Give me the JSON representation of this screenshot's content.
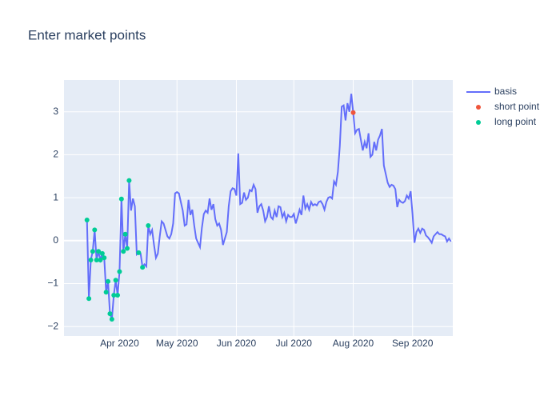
{
  "chart_data": {
    "type": "line",
    "title": "Enter market points",
    "xlim": [
      "2020-03-03",
      "2020-09-22"
    ],
    "xticks": [
      {
        "value": "2020-04-01",
        "label": "Apr 2020"
      },
      {
        "value": "2020-05-01",
        "label": "May 2020"
      },
      {
        "value": "2020-06-01",
        "label": "Jun 2020"
      },
      {
        "value": "2020-07-01",
        "label": "Jul 2020"
      },
      {
        "value": "2020-08-01",
        "label": "Aug 2020"
      },
      {
        "value": "2020-09-01",
        "label": "Sep 2020"
      }
    ],
    "ylim": [
      -2.22,
      3.74
    ],
    "yticks": [
      {
        "value": -2,
        "label": "−2"
      },
      {
        "value": -1,
        "label": "−1"
      },
      0,
      1,
      2,
      3
    ],
    "grid": true,
    "legend": "top-right-outside",
    "series": [
      {
        "name": "basis",
        "color": "#636efa",
        "mode": "lines",
        "x": [
          "2020-03-15",
          "2020-03-16",
          "2020-03-17",
          "2020-03-18",
          "2020-03-19",
          "2020-03-20",
          "2020-03-21",
          "2020-03-22",
          "2020-03-23",
          "2020-03-24",
          "2020-03-25",
          "2020-03-26",
          "2020-03-27",
          "2020-03-28",
          "2020-03-29",
          "2020-03-30",
          "2020-03-31",
          "2020-04-01",
          "2020-04-02",
          "2020-04-03",
          "2020-04-04",
          "2020-04-05",
          "2020-04-06",
          "2020-04-07",
          "2020-04-08",
          "2020-04-09",
          "2020-04-10",
          "2020-04-11",
          "2020-04-12",
          "2020-04-13",
          "2020-04-14",
          "2020-04-15",
          "2020-04-16",
          "2020-04-17",
          "2020-04-18",
          "2020-04-19",
          "2020-04-20",
          "2020-04-21",
          "2020-04-22",
          "2020-04-23",
          "2020-04-24",
          "2020-04-26",
          "2020-04-27",
          "2020-04-28",
          "2020-04-29",
          "2020-04-30",
          "2020-05-01",
          "2020-05-02",
          "2020-05-04",
          "2020-05-05",
          "2020-05-06",
          "2020-05-07",
          "2020-05-08",
          "2020-05-09",
          "2020-05-10",
          "2020-05-11",
          "2020-05-13",
          "2020-05-14",
          "2020-05-15",
          "2020-05-16",
          "2020-05-17",
          "2020-05-18",
          "2020-05-19",
          "2020-05-20",
          "2020-05-21",
          "2020-05-22",
          "2020-05-23",
          "2020-05-24",
          "2020-05-25",
          "2020-05-26",
          "2020-05-27",
          "2020-05-28",
          "2020-05-29",
          "2020-05-30",
          "2020-05-31",
          "2020-06-01",
          "2020-06-02",
          "2020-06-03",
          "2020-06-04",
          "2020-06-05",
          "2020-06-06",
          "2020-06-07",
          "2020-06-08",
          "2020-06-09",
          "2020-06-10",
          "2020-06-11",
          "2020-06-12",
          "2020-06-13",
          "2020-06-14",
          "2020-06-15",
          "2020-06-16",
          "2020-06-17",
          "2020-06-18",
          "2020-06-19",
          "2020-06-20",
          "2020-06-21",
          "2020-06-22",
          "2020-06-23",
          "2020-06-24",
          "2020-06-25",
          "2020-06-26",
          "2020-06-27",
          "2020-06-28",
          "2020-06-29",
          "2020-06-30",
          "2020-07-01",
          "2020-07-02",
          "2020-07-03",
          "2020-07-04",
          "2020-07-05",
          "2020-07-06",
          "2020-07-07",
          "2020-07-08",
          "2020-07-09",
          "2020-07-10",
          "2020-07-11",
          "2020-07-12",
          "2020-07-13",
          "2020-07-14",
          "2020-07-15",
          "2020-07-16",
          "2020-07-17",
          "2020-07-18",
          "2020-07-19",
          "2020-07-20",
          "2020-07-21",
          "2020-07-22",
          "2020-07-23",
          "2020-07-24",
          "2020-07-25",
          "2020-07-26",
          "2020-07-27",
          "2020-07-28",
          "2020-07-29",
          "2020-07-30",
          "2020-07-31",
          "2020-08-01",
          "2020-08-02",
          "2020-08-03",
          "2020-08-04",
          "2020-08-05",
          "2020-08-06",
          "2020-08-07",
          "2020-08-08",
          "2020-08-09",
          "2020-08-10",
          "2020-08-11",
          "2020-08-12",
          "2020-08-13",
          "2020-08-14",
          "2020-08-15",
          "2020-08-16",
          "2020-08-17",
          "2020-08-18",
          "2020-08-19",
          "2020-08-20",
          "2020-08-21",
          "2020-08-22",
          "2020-08-23",
          "2020-08-24",
          "2020-08-25",
          "2020-08-26",
          "2020-08-27",
          "2020-08-28",
          "2020-08-29",
          "2020-08-30",
          "2020-08-31",
          "2020-09-01",
          "2020-09-02",
          "2020-09-03",
          "2020-09-04",
          "2020-09-05",
          "2020-09-06",
          "2020-09-07",
          "2020-09-08",
          "2020-09-09",
          "2020-09-10",
          "2020-09-11",
          "2020-09-12",
          "2020-09-13",
          "2020-09-14",
          "2020-09-15",
          "2020-09-16",
          "2020-09-17",
          "2020-09-18",
          "2020-09-19",
          "2020-09-20",
          "2020-09-21"
        ],
        "values": [
          0.48,
          -1.35,
          -0.45,
          -0.25,
          0.25,
          -0.45,
          -0.25,
          -0.45,
          -0.3,
          -0.4,
          -1.2,
          -0.95,
          -1.7,
          -1.83,
          -1.27,
          -0.92,
          -1.27,
          -0.72,
          0.97,
          -0.25,
          0.15,
          -0.18,
          1.4,
          0.7,
          0.98,
          0.8,
          -0.32,
          -0.28,
          -0.3,
          -0.62,
          -0.55,
          -0.6,
          0.35,
          0.15,
          0.25,
          -0.1,
          -0.4,
          -0.3,
          0.1,
          0.45,
          0.4,
          0.1,
          0.05,
          0.15,
          0.4,
          1.1,
          1.13,
          1.1,
          0.7,
          0.35,
          0.38,
          0.95,
          0.6,
          0.72,
          0.35,
          0.05,
          -0.15,
          0.3,
          0.62,
          0.7,
          0.65,
          0.98,
          0.72,
          0.85,
          0.5,
          0.35,
          0.4,
          0.25,
          -0.1,
          0.05,
          0.2,
          0.8,
          1.15,
          1.22,
          1.2,
          1.05,
          2.03,
          0.85,
          0.88,
          1.12,
          0.95,
          1.0,
          1.18,
          1.15,
          1.3,
          1.2,
          0.65,
          0.8,
          0.85,
          0.7,
          0.45,
          0.55,
          0.8,
          0.55,
          0.5,
          0.7,
          0.55,
          0.8,
          0.78,
          0.55,
          0.65,
          0.45,
          0.6,
          0.55,
          0.55,
          0.62,
          0.4,
          0.55,
          0.72,
          0.6,
          1.05,
          0.75,
          0.85,
          0.72,
          0.9,
          0.82,
          0.85,
          0.82,
          0.9,
          0.92,
          0.85,
          0.72,
          0.9,
          1.0,
          1.02,
          0.98,
          1.38,
          1.3,
          1.6,
          2.2,
          3.12,
          3.15,
          2.8,
          3.2,
          3.0,
          3.42,
          2.98,
          2.5,
          2.58,
          2.6,
          2.35,
          2.1,
          2.3,
          2.15,
          2.5,
          1.95,
          2.0,
          2.3,
          2.1,
          2.35,
          2.45,
          2.6,
          1.75,
          1.55,
          1.35,
          1.25,
          1.3,
          1.28,
          1.2,
          0.78,
          0.95,
          0.9,
          0.88,
          0.92,
          1.05,
          0.98,
          1.15,
          0.6,
          -0.05,
          0.2,
          0.28,
          0.18,
          0.28,
          0.25,
          0.12,
          0.08,
          0.02,
          -0.05,
          0.1,
          0.15,
          0.2,
          0.15,
          0.15,
          0.12,
          0.1,
          -0.02,
          0.05,
          -0.02
        ]
      },
      {
        "name": "short point",
        "color": "#ef553b",
        "mode": "markers",
        "x": [
          "2020-08-01"
        ],
        "values": [
          2.98
        ]
      },
      {
        "name": "long point",
        "color": "#00cc96",
        "mode": "markers",
        "x": [
          "2020-03-15",
          "2020-03-16",
          "2020-03-17",
          "2020-03-18",
          "2020-03-19",
          "2020-03-20",
          "2020-03-21",
          "2020-03-22",
          "2020-03-23",
          "2020-03-24",
          "2020-03-25",
          "2020-03-26",
          "2020-03-27",
          "2020-03-28",
          "2020-03-29",
          "2020-03-30",
          "2020-03-31",
          "2020-04-01",
          "2020-04-02",
          "2020-04-03",
          "2020-04-04",
          "2020-04-05",
          "2020-04-06",
          "2020-04-11",
          "2020-04-13",
          "2020-04-16"
        ],
        "values": [
          0.48,
          -1.35,
          -0.45,
          -0.25,
          0.25,
          -0.45,
          -0.25,
          -0.45,
          -0.3,
          -0.4,
          -1.2,
          -0.95,
          -1.7,
          -1.83,
          -1.27,
          -0.92,
          -1.27,
          -0.72,
          0.97,
          -0.25,
          0.15,
          -0.18,
          1.4,
          -0.28,
          -0.62,
          0.35
        ]
      }
    ]
  }
}
